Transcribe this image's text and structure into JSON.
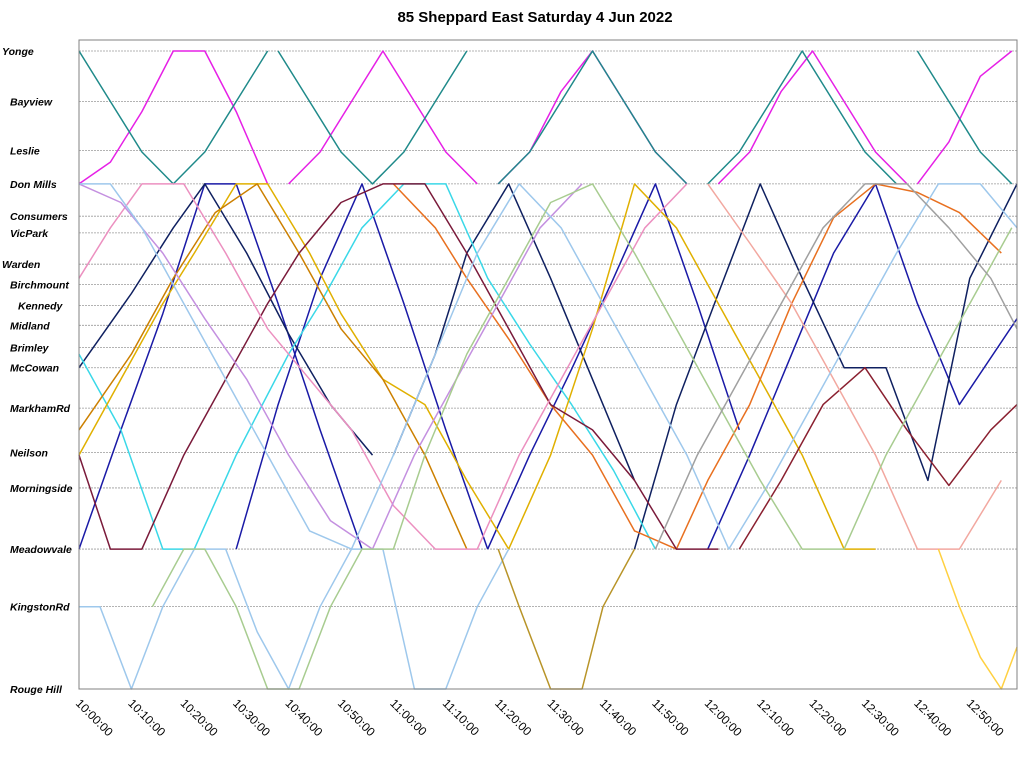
{
  "chart_data": {
    "type": "line",
    "title": "85 Sheppard East Saturday 4 Jun 2022",
    "xlabel": "",
    "ylabel": "",
    "x_range": [
      "10:00:00",
      "12:59:00"
    ],
    "x_ticks": [
      "10:00:00",
      "10:10:00",
      "10:20:00",
      "10:30:00",
      "10:40:00",
      "10:50:00",
      "11:00:00",
      "11:10:00",
      "11:20:00",
      "11:30:00",
      "11:40:00",
      "11:50:00",
      "12:00:00",
      "12:10:00",
      "12:20:00",
      "12:30:00",
      "12:40:00",
      "12:50:00"
    ],
    "stops": [
      "Yonge",
      "Bayview",
      "Leslie",
      "Don Mills",
      "Consumers",
      "VicPark",
      "Warden",
      "Birchmount",
      "Kennedy",
      "Midland",
      "Brimley",
      "McCowan",
      "MarkhamRd",
      "Neilson",
      "Morningside",
      "Meadowvale",
      "KingstonRd",
      "Rouge Hill"
    ],
    "stop_positions": [
      0,
      1.0,
      1.97,
      2.63,
      3.27,
      3.6,
      4.22,
      4.62,
      5.04,
      5.43,
      5.87,
      6.27,
      7.07,
      7.95,
      8.65,
      9.86,
      11.0,
      12.63
    ],
    "grid": true,
    "legend": "none",
    "series": [
      {
        "color": "#e620e6",
        "x": [
          "10:00:00",
          "10:06:00",
          "10:12:00",
          "10:18:00",
          "10:24:00",
          "10:30:00",
          "10:36:00"
        ],
        "y": [
          2.63,
          2.2,
          1.2,
          0,
          0,
          1.2,
          2.63
        ]
      },
      {
        "color": "#e620e6",
        "x": [
          "10:40:00",
          "10:46:00",
          "10:52:00",
          "10:58:00",
          "11:04:00",
          "11:10:00",
          "11:16:00"
        ],
        "y": [
          2.63,
          2.0,
          1.0,
          0,
          1.0,
          2.0,
          2.63
        ]
      },
      {
        "color": "#e620e6",
        "x": [
          "11:20:00",
          "11:26:00",
          "11:32:00",
          "11:38:00",
          "11:44:00",
          "11:50:00",
          "11:56:00"
        ],
        "y": [
          2.63,
          2.0,
          0.8,
          0,
          1.0,
          2.0,
          2.63
        ]
      },
      {
        "color": "#e620e6",
        "x": [
          "12:02:00",
          "12:08:00",
          "12:14:00",
          "12:20:00",
          "12:26:00",
          "12:32:00",
          "12:38:00"
        ],
        "y": [
          2.63,
          2.0,
          0.8,
          0,
          1.0,
          2.0,
          2.63
        ]
      },
      {
        "color": "#e620e6",
        "x": [
          "12:40:00",
          "12:46:00",
          "12:52:00",
          "12:58:00"
        ],
        "y": [
          2.63,
          1.8,
          0.5,
          0
        ]
      },
      {
        "color": "#1f8a8a",
        "x": [
          "10:00:00",
          "10:06:00",
          "10:12:00",
          "10:18:00",
          "10:24:00",
          "10:30:00",
          "10:36:00"
        ],
        "y": [
          0,
          1.0,
          2.0,
          2.63,
          2.0,
          1.0,
          0
        ]
      },
      {
        "color": "#1f8a8a",
        "x": [
          "10:38:00",
          "10:44:00",
          "10:50:00",
          "10:56:00",
          "11:02:00",
          "11:08:00",
          "11:14:00"
        ],
        "y": [
          0,
          1.0,
          2.0,
          2.63,
          2.0,
          1.0,
          0
        ]
      },
      {
        "color": "#1f8a8a",
        "x": [
          "11:20:00",
          "11:26:00",
          "11:32:00",
          "11:38:00",
          "11:44:00",
          "11:50:00",
          "11:56:00"
        ],
        "y": [
          2.63,
          2.0,
          1.0,
          0,
          1.0,
          2.0,
          2.63
        ]
      },
      {
        "color": "#1f8a8a",
        "x": [
          "12:00:00",
          "12:06:00",
          "12:12:00",
          "12:18:00",
          "12:24:00",
          "12:30:00",
          "12:36:00"
        ],
        "y": [
          2.63,
          2.0,
          1.0,
          0,
          1.0,
          2.0,
          2.63
        ]
      },
      {
        "color": "#1f8a8a",
        "x": [
          "12:40:00",
          "12:46:00",
          "12:52:00",
          "12:58:00"
        ],
        "y": [
          0,
          1.0,
          2.0,
          2.63
        ]
      },
      {
        "color": "#1a1aa6",
        "x": [
          "10:00:00",
          "10:08:00",
          "10:16:00",
          "10:24:00",
          "10:30:00",
          "10:38:00",
          "10:46:00",
          "10:54:00"
        ],
        "y": [
          9.86,
          7.5,
          5.2,
          2.63,
          2.63,
          5.0,
          7.5,
          9.86
        ]
      },
      {
        "color": "#1a1aa6",
        "x": [
          "10:30:00",
          "10:38:00",
          "10:46:00",
          "10:54:00",
          "11:02:00",
          "11:10:00",
          "11:18:00"
        ],
        "y": [
          9.86,
          7.0,
          4.5,
          2.63,
          5.0,
          7.5,
          9.86
        ]
      },
      {
        "color": "#1a1aa6",
        "x": [
          "11:18:00",
          "11:26:00",
          "11:34:00",
          "11:42:00",
          "11:50:00",
          "11:58:00",
          "12:06:00"
        ],
        "y": [
          9.86,
          8.0,
          6.3,
          4.5,
          2.63,
          5.0,
          7.5
        ]
      },
      {
        "color": "#1a1aa6",
        "x": [
          "12:00:00",
          "12:08:00",
          "12:16:00",
          "12:24:00",
          "12:32:00",
          "12:40:00",
          "12:48:00",
          "12:59:00"
        ],
        "y": [
          9.86,
          8.0,
          6.0,
          4.0,
          2.63,
          5.0,
          7.0,
          5.3
        ]
      },
      {
        "color": "#0f2060",
        "x": [
          "10:00:00",
          "10:10:00",
          "10:18:00",
          "10:24:00",
          "10:32:00",
          "10:40:00",
          "10:48:00",
          "10:56:00"
        ],
        "y": [
          6.27,
          4.8,
          3.5,
          2.63,
          4.0,
          5.6,
          7.0,
          8.0
        ]
      },
      {
        "color": "#0f2060",
        "x": [
          "11:00:00",
          "11:08:00",
          "11:14:00",
          "11:22:00",
          "11:30:00",
          "11:38:00",
          "11:46:00"
        ],
        "y": [
          8.0,
          6.0,
          4.0,
          2.63,
          4.5,
          6.5,
          8.5
        ]
      },
      {
        "color": "#0f2060",
        "x": [
          "11:46:00",
          "11:54:00",
          "12:02:00",
          "12:10:00",
          "12:18:00",
          "12:26:00",
          "12:34:00",
          "12:42:00",
          "12:50:00",
          "12:59:00"
        ],
        "y": [
          9.86,
          7.0,
          4.8,
          2.63,
          4.5,
          6.27,
          6.27,
          8.5,
          4.5,
          2.63
        ]
      },
      {
        "color": "#3ad8e8",
        "x": [
          "10:00:00",
          "10:08:00",
          "10:16:00",
          "10:22:00",
          "10:30:00",
          "10:40:00",
          "10:46:00",
          "10:54:00",
          "11:02:00",
          "11:10:00",
          "11:18:00",
          "11:26:00",
          "11:34:00",
          "11:42:00",
          "11:50:00"
        ],
        "y": [
          6.0,
          7.5,
          9.86,
          9.86,
          8.0,
          6.0,
          5.0,
          3.5,
          2.63,
          2.63,
          4.5,
          5.8,
          7.0,
          8.3,
          9.86
        ]
      },
      {
        "color": "#e0b000",
        "x": [
          "10:00:00",
          "10:08:00",
          "10:16:00",
          "10:22:00",
          "10:30:00",
          "10:36:00",
          "10:44:00",
          "10:50:00",
          "10:58:00",
          "11:06:00",
          "11:14:00",
          "11:22:00",
          "11:30:00",
          "11:38:00",
          "11:46:00",
          "11:54:00",
          "12:02:00",
          "12:10:00",
          "12:18:00",
          "12:26:00",
          "12:32:00"
        ],
        "y": [
          8.0,
          6.5,
          5.0,
          4.0,
          2.63,
          2.63,
          4.0,
          5.2,
          6.5,
          7.0,
          8.5,
          9.86,
          8.0,
          5.5,
          2.63,
          3.5,
          5.0,
          6.5,
          8.0,
          9.86,
          9.86
        ]
      },
      {
        "color": "#cc8000",
        "x": [
          "10:00:00",
          "10:10:00",
          "10:18:00",
          "10:26:00",
          "10:34:00",
          "10:42:00",
          "10:50:00",
          "10:58:00",
          "11:06:00",
          "11:14:00"
        ],
        "y": [
          7.5,
          6.0,
          4.5,
          3.2,
          2.63,
          4.0,
          5.5,
          6.5,
          8.0,
          9.86
        ]
      },
      {
        "color": "#e87020",
        "x": [
          "11:00:00",
          "11:08:00",
          "11:14:00",
          "11:22:00",
          "11:30:00",
          "11:38:00",
          "11:46:00",
          "11:54:00",
          "12:00:00",
          "12:08:00",
          "12:16:00",
          "12:24:00",
          "12:32:00",
          "12:40:00",
          "12:48:00",
          "12:56:00"
        ],
        "y": [
          2.63,
          3.5,
          4.5,
          5.7,
          7.0,
          8.0,
          9.5,
          9.86,
          8.5,
          7.0,
          5.0,
          3.3,
          2.63,
          2.8,
          3.2,
          4.0
        ]
      },
      {
        "color": "#7a1a3a",
        "x": [
          "10:00:00",
          "10:06:00",
          "10:12:00",
          "10:20:00",
          "10:28:00",
          "10:36:00",
          "10:42:00",
          "10:50:00",
          "10:58:00",
          "11:06:00",
          "11:14:00",
          "11:22:00",
          "11:30:00",
          "11:38:00",
          "11:46:00",
          "11:54:00",
          "12:02:00"
        ],
        "y": [
          8.0,
          9.86,
          9.86,
          8.0,
          6.5,
          5.0,
          4.0,
          3.0,
          2.63,
          2.63,
          4.0,
          5.5,
          7.0,
          7.5,
          8.5,
          9.86,
          9.86
        ]
      },
      {
        "color": "#8a2030",
        "x": [
          "12:06:00",
          "12:14:00",
          "12:22:00",
          "12:30:00",
          "12:38:00",
          "12:46:00",
          "12:54:00",
          "12:59:00"
        ],
        "y": [
          9.86,
          8.5,
          7.0,
          6.27,
          7.5,
          8.6,
          7.5,
          7.0
        ]
      },
      {
        "color": "#ec90c0",
        "x": [
          "10:00:00",
          "10:06:00",
          "10:12:00",
          "10:20:00",
          "10:28:00",
          "10:36:00",
          "10:44:00",
          "10:52:00",
          "11:00:00",
          "11:08:00",
          "11:16:00",
          "11:24:00",
          "11:32:00",
          "11:40:00",
          "11:48:00",
          "11:56:00"
        ],
        "y": [
          4.5,
          3.5,
          2.63,
          2.63,
          4.0,
          5.5,
          6.5,
          7.5,
          9.0,
          9.86,
          9.86,
          8.0,
          6.5,
          5.0,
          3.5,
          2.63
        ]
      },
      {
        "color": "#f2a8a0",
        "x": [
          "12:00:00",
          "12:08:00",
          "12:16:00",
          "12:24:00",
          "12:32:00",
          "12:40:00",
          "12:48:00",
          "12:56:00"
        ],
        "y": [
          2.63,
          3.8,
          5.0,
          6.5,
          8.0,
          9.86,
          9.86,
          8.5
        ]
      },
      {
        "color": "#c490e0",
        "x": [
          "10:00:00",
          "10:08:00",
          "10:16:00",
          "10:24:00",
          "10:32:00",
          "10:40:00",
          "10:48:00",
          "10:56:00",
          "11:04:00",
          "11:12:00",
          "11:20:00",
          "11:28:00",
          "11:36:00"
        ],
        "y": [
          2.63,
          3.0,
          4.0,
          5.3,
          6.5,
          8.0,
          9.3,
          9.86,
          8.0,
          6.5,
          5.0,
          3.5,
          2.63
        ]
      },
      {
        "color": "#9ec8ec",
        "x": [
          "10:00:00",
          "10:06:00",
          "10:12:00",
          "10:20:00",
          "10:28:00",
          "10:36:00",
          "10:44:00",
          "10:52:00",
          "11:00:00",
          "11:08:00",
          "11:16:00",
          "11:24:00",
          "11:32:00",
          "11:40:00",
          "11:48:00",
          "11:56:00",
          "12:04:00",
          "12:12:00",
          "12:20:00",
          "12:28:00",
          "12:36:00",
          "12:44:00",
          "12:52:00",
          "12:59:00"
        ],
        "y": [
          2.63,
          2.63,
          3.5,
          5.0,
          6.5,
          8.0,
          9.5,
          9.86,
          8.0,
          6.0,
          4.0,
          2.63,
          3.5,
          5.0,
          6.5,
          8.0,
          9.86,
          8.5,
          7.0,
          5.5,
          4.0,
          2.63,
          2.63,
          3.5
        ]
      },
      {
        "color": "#9ec8ec",
        "x": [
          "10:00:00",
          "10:04:00",
          "10:10:00",
          "10:16:00",
          "10:22:00",
          "10:28:00",
          "10:34:00",
          "10:40:00",
          "10:46:00",
          "10:52:00",
          "10:58:00",
          "11:04:00",
          "11:10:00",
          "11:16:00",
          "11:22:00"
        ],
        "y": [
          11.0,
          11.0,
          12.63,
          11.0,
          9.86,
          9.86,
          11.5,
          12.63,
          11.0,
          9.86,
          9.86,
          12.63,
          12.63,
          11.0,
          9.86
        ]
      },
      {
        "color": "#a8cc90",
        "x": [
          "10:14:00",
          "10:20:00",
          "10:24:00",
          "10:30:00",
          "10:36:00",
          "10:42:00",
          "10:48:00",
          "10:54:00",
          "11:00:00",
          "11:06:00",
          "11:14:00",
          "11:22:00",
          "11:30:00",
          "11:38:00",
          "11:46:00",
          "11:54:00",
          "12:02:00",
          "12:10:00",
          "12:18:00",
          "12:26:00",
          "12:34:00",
          "12:42:00",
          "12:50:00",
          "12:58:00"
        ],
        "y": [
          11.0,
          9.86,
          9.86,
          11.0,
          12.63,
          12.63,
          11.0,
          9.86,
          9.86,
          8.0,
          6.0,
          4.5,
          3.0,
          2.63,
          4.0,
          5.5,
          7.0,
          8.5,
          9.86,
          9.86,
          8.0,
          6.5,
          5.0,
          3.5
        ]
      },
      {
        "color": "#b89428",
        "x": [
          "11:20:00",
          "11:24:00",
          "11:30:00",
          "11:36:00",
          "11:40:00",
          "11:46:00"
        ],
        "y": [
          9.86,
          11.0,
          12.63,
          12.63,
          11.0,
          9.86
        ]
      },
      {
        "color": "#ffd040",
        "x": [
          "12:44:00",
          "12:48:00",
          "12:52:00",
          "12:56:00",
          "12:59:00"
        ],
        "y": [
          9.86,
          11.0,
          12.0,
          12.63,
          11.8
        ]
      },
      {
        "color": "#a0a0a0",
        "x": [
          "11:50:00",
          "11:58:00",
          "12:06:00",
          "12:14:00",
          "12:22:00",
          "12:30:00",
          "12:38:00",
          "12:46:00",
          "12:54:00",
          "12:59:00"
        ],
        "y": [
          9.86,
          8.0,
          6.5,
          5.0,
          3.5,
          2.63,
          2.63,
          3.5,
          4.5,
          5.5
        ]
      }
    ]
  }
}
